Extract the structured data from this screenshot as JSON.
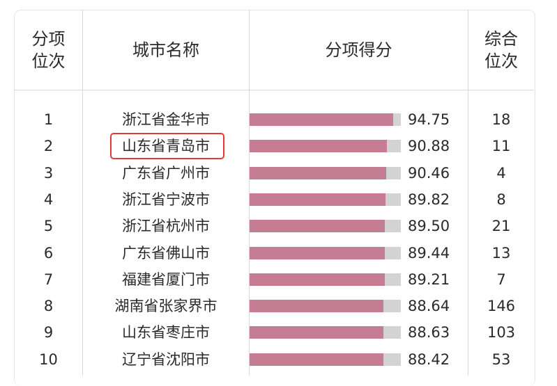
{
  "headers": {
    "rank_line1": "分项",
    "rank_line2": "位次",
    "city": "城市名称",
    "score": "分项得分",
    "overall_line1": "综合",
    "overall_line2": "位次"
  },
  "highlight_row": 1,
  "colors": {
    "bar": "#c57d94",
    "bar_track": "#d3d3d3",
    "highlight": "#e23a35"
  },
  "bar_max": 100,
  "chart_data": {
    "type": "table",
    "rows": [
      {
        "rank": "1",
        "city": "浙江省金华市",
        "score": 94.75,
        "score_text": "94.75",
        "overall": "18"
      },
      {
        "rank": "2",
        "city": "山东省青岛市",
        "score": 90.88,
        "score_text": "90.88",
        "overall": "11"
      },
      {
        "rank": "3",
        "city": "广东省广州市",
        "score": 90.46,
        "score_text": "90.46",
        "overall": "4"
      },
      {
        "rank": "4",
        "city": "浙江省宁波市",
        "score": 89.82,
        "score_text": "89.82",
        "overall": "8"
      },
      {
        "rank": "5",
        "city": "浙江省杭州市",
        "score": 89.5,
        "score_text": "89.50",
        "overall": "21"
      },
      {
        "rank": "6",
        "city": "广东省佛山市",
        "score": 89.44,
        "score_text": "89.44",
        "overall": "13"
      },
      {
        "rank": "7",
        "city": "福建省厦门市",
        "score": 89.21,
        "score_text": "89.21",
        "overall": "7"
      },
      {
        "rank": "8",
        "city": "湖南省张家界市",
        "score": 88.64,
        "score_text": "88.64",
        "overall": "146"
      },
      {
        "rank": "9",
        "city": "山东省枣庄市",
        "score": 88.63,
        "score_text": "88.63",
        "overall": "103"
      },
      {
        "rank": "10",
        "city": "辽宁省沈阳市",
        "score": 88.42,
        "score_text": "88.42",
        "overall": "53"
      }
    ]
  }
}
